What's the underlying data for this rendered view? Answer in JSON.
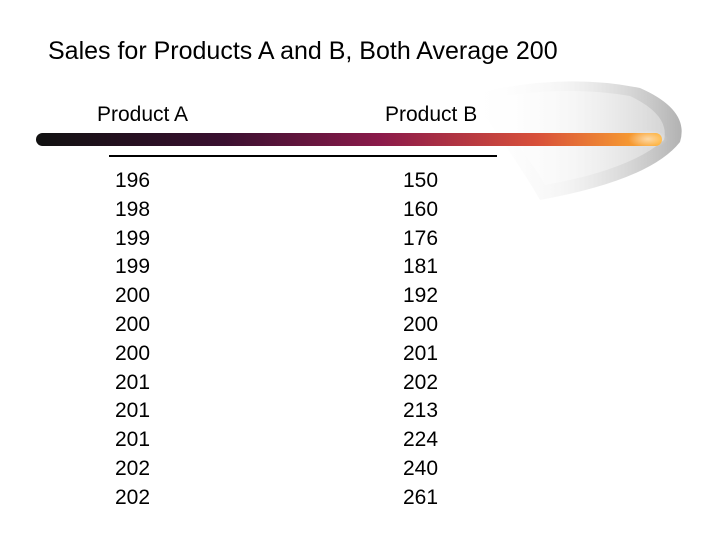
{
  "slide": {
    "title": "Sales for Products A and B, Both Average 200"
  },
  "table": {
    "headers": [
      "Product A",
      "Product B"
    ],
    "product_a": [
      "196",
      "198",
      "199",
      "199",
      "200",
      "200",
      "200",
      "201",
      "201",
      "201",
      "202",
      "202"
    ],
    "product_b": [
      "150",
      "160",
      "176",
      "181",
      "192",
      "200",
      "201",
      "202",
      "213",
      "224",
      "240",
      "261"
    ]
  },
  "colors": {
    "text": "#000000",
    "bar_start": "#1a1a1a",
    "bar_mid": "#8b1a4a",
    "bar_end": "#ffb02e",
    "swoosh": "#c8c8c8"
  }
}
